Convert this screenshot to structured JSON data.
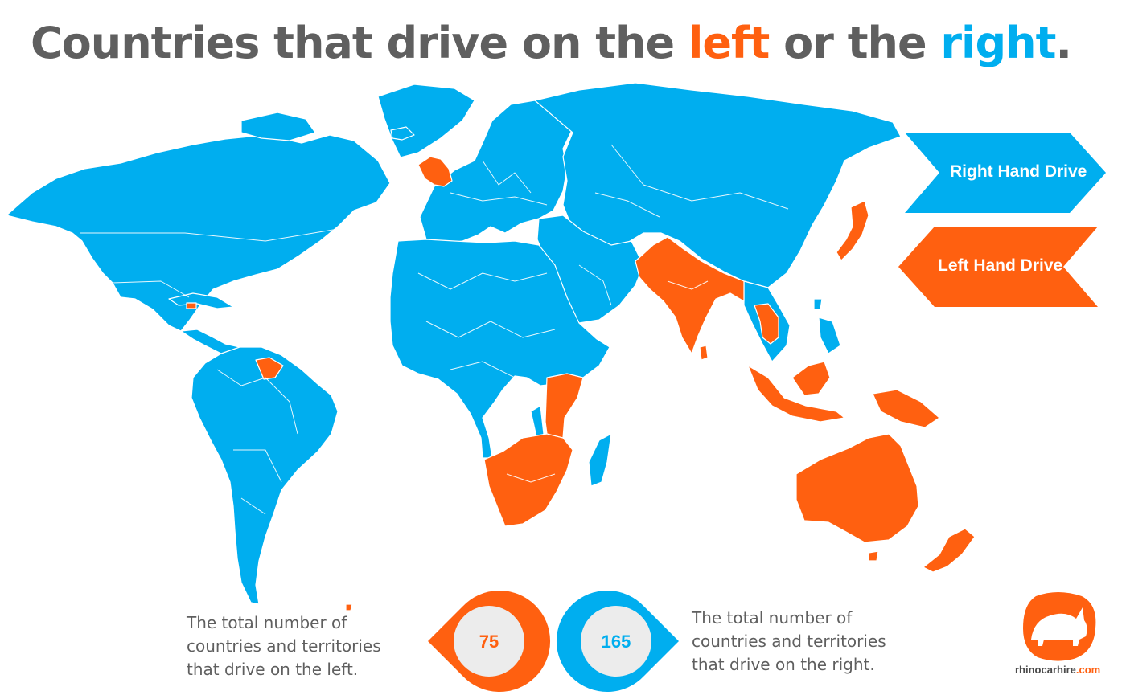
{
  "title": {
    "prefix": "Countries that drive on the ",
    "left_word": "left",
    "middle": " or the ",
    "right_word": "right",
    "suffix": "."
  },
  "legend": {
    "right_label": "Right Hand Drive",
    "left_label": "Left Hand Drive"
  },
  "stats": {
    "left": {
      "count": "75",
      "lines": [
        "The total number of",
        "countries and territories",
        "that drive on the left."
      ]
    },
    "right": {
      "count": "165",
      "lines": [
        "The total number of",
        "countries and territories",
        "that drive on the right."
      ]
    }
  },
  "logo": {
    "name": "rhinocarhire",
    "suffix": ".com"
  },
  "colors": {
    "right_hand_drive": "#00aeef",
    "left_hand_drive": "#ff6010",
    "title_gray": "#5f5f5f",
    "circle_inner": "#ececec"
  },
  "icons": [
    "rhino-logo-icon"
  ]
}
